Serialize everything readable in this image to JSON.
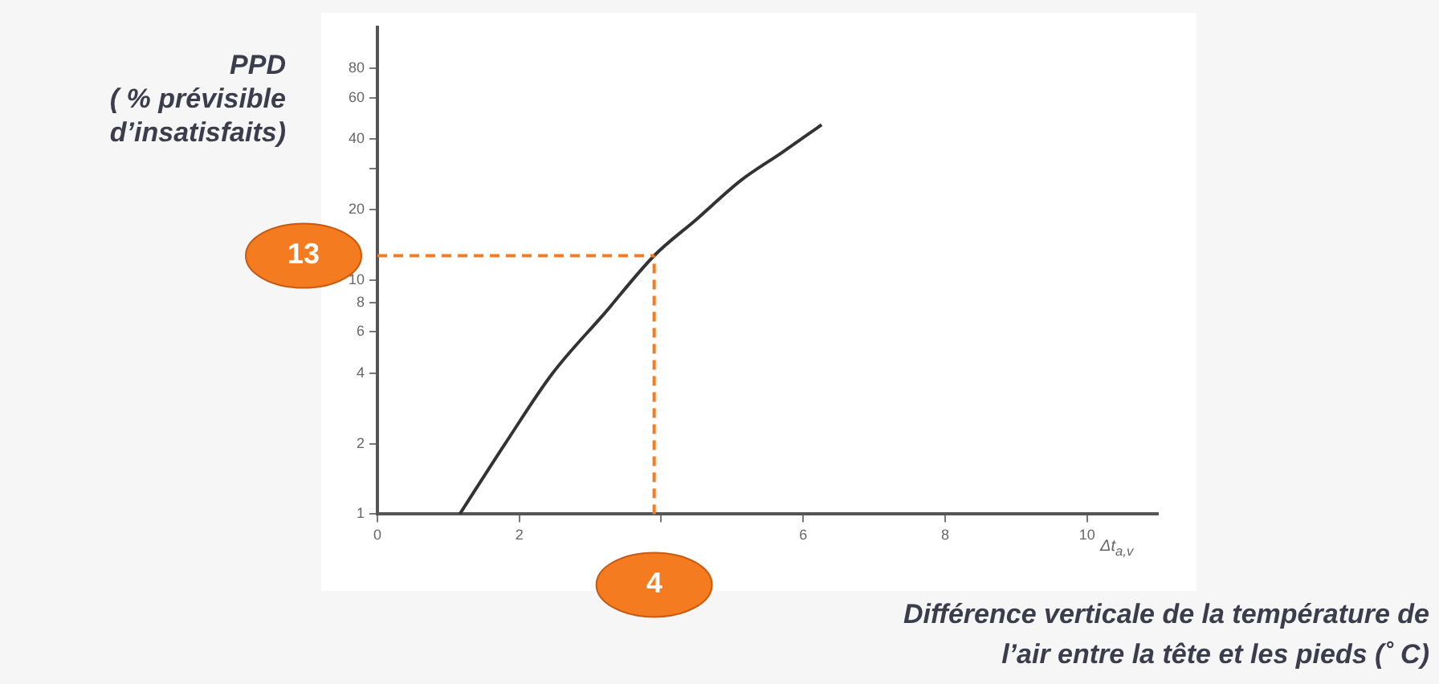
{
  "chart_data": {
    "type": "line",
    "xlabel": "Différence verticale de la température de\nl’air entre la tête et les pieds (˚ C)",
    "ylabel": "PPD\n( % prévisible\nd’insatisfaits)",
    "annotations": [
      "Δt$_{a,v}$"
    ],
    "series": [
      {
        "color": "#333333",
        "x": [
          1.16,
          1.8,
          2.47,
          3.2,
          3.9,
          4.5,
          5.12,
          5.7,
          6.26
        ],
        "values": [
          1,
          2,
          4,
          7.2,
          12.7,
          18.2,
          26.6,
          35,
          46
        ]
      }
    ],
    "xlim": [
      0,
      11
    ],
    "xticks": [
      0,
      2,
      {
        "value": 4,
        "label": null
      },
      6,
      8,
      10
    ],
    "ylim": [
      1,
      120
    ],
    "yticks": [
      1,
      2,
      4,
      6,
      8,
      10,
      20,
      {
        "value": 30,
        "label": null
      },
      40,
      60,
      80
    ],
    "log": "y",
    "grid": false,
    "legend": false,
    "marker": "none",
    "line_style": "solid",
    "ref_lines": [
      {
        "axis": "x",
        "value": 3.9,
        "label": "4",
        "color": "#f47b20",
        "line_style": "dashed"
      },
      {
        "axis": "y",
        "value": 12.7,
        "label": "13",
        "color": "#f47b20",
        "line_style": "dashed"
      }
    ]
  }
}
